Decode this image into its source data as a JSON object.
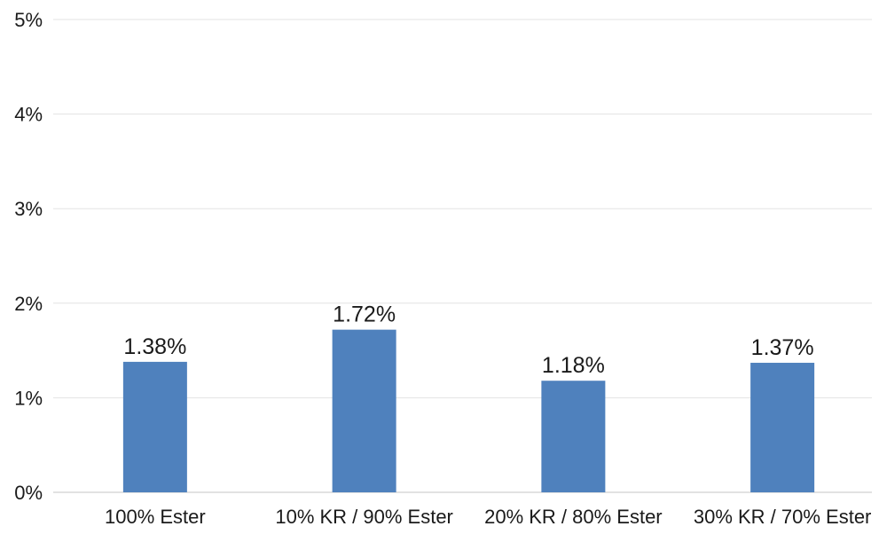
{
  "chart_data": {
    "type": "bar",
    "categories": [
      "100% Ester",
      "10% KR / 90% Ester",
      "20% KR / 80% Ester",
      "30% KR / 70% Ester"
    ],
    "values": [
      1.38,
      1.72,
      1.18,
      1.37
    ],
    "value_labels": [
      "1.38%",
      "1.72%",
      "1.18%",
      "1.37%"
    ],
    "ylim": [
      0,
      5
    ],
    "yticks": [
      0,
      1,
      2,
      3,
      4,
      5
    ],
    "ytick_labels": [
      "0%",
      "1%",
      "2%",
      "3%",
      "4%",
      "5%"
    ],
    "title": "",
    "xlabel": "",
    "ylabel": "",
    "grid": true,
    "legend": "none",
    "colors": {
      "bar": "#4f81bd",
      "grid": "#e3e3e3",
      "text": "#1a1a1a"
    }
  }
}
